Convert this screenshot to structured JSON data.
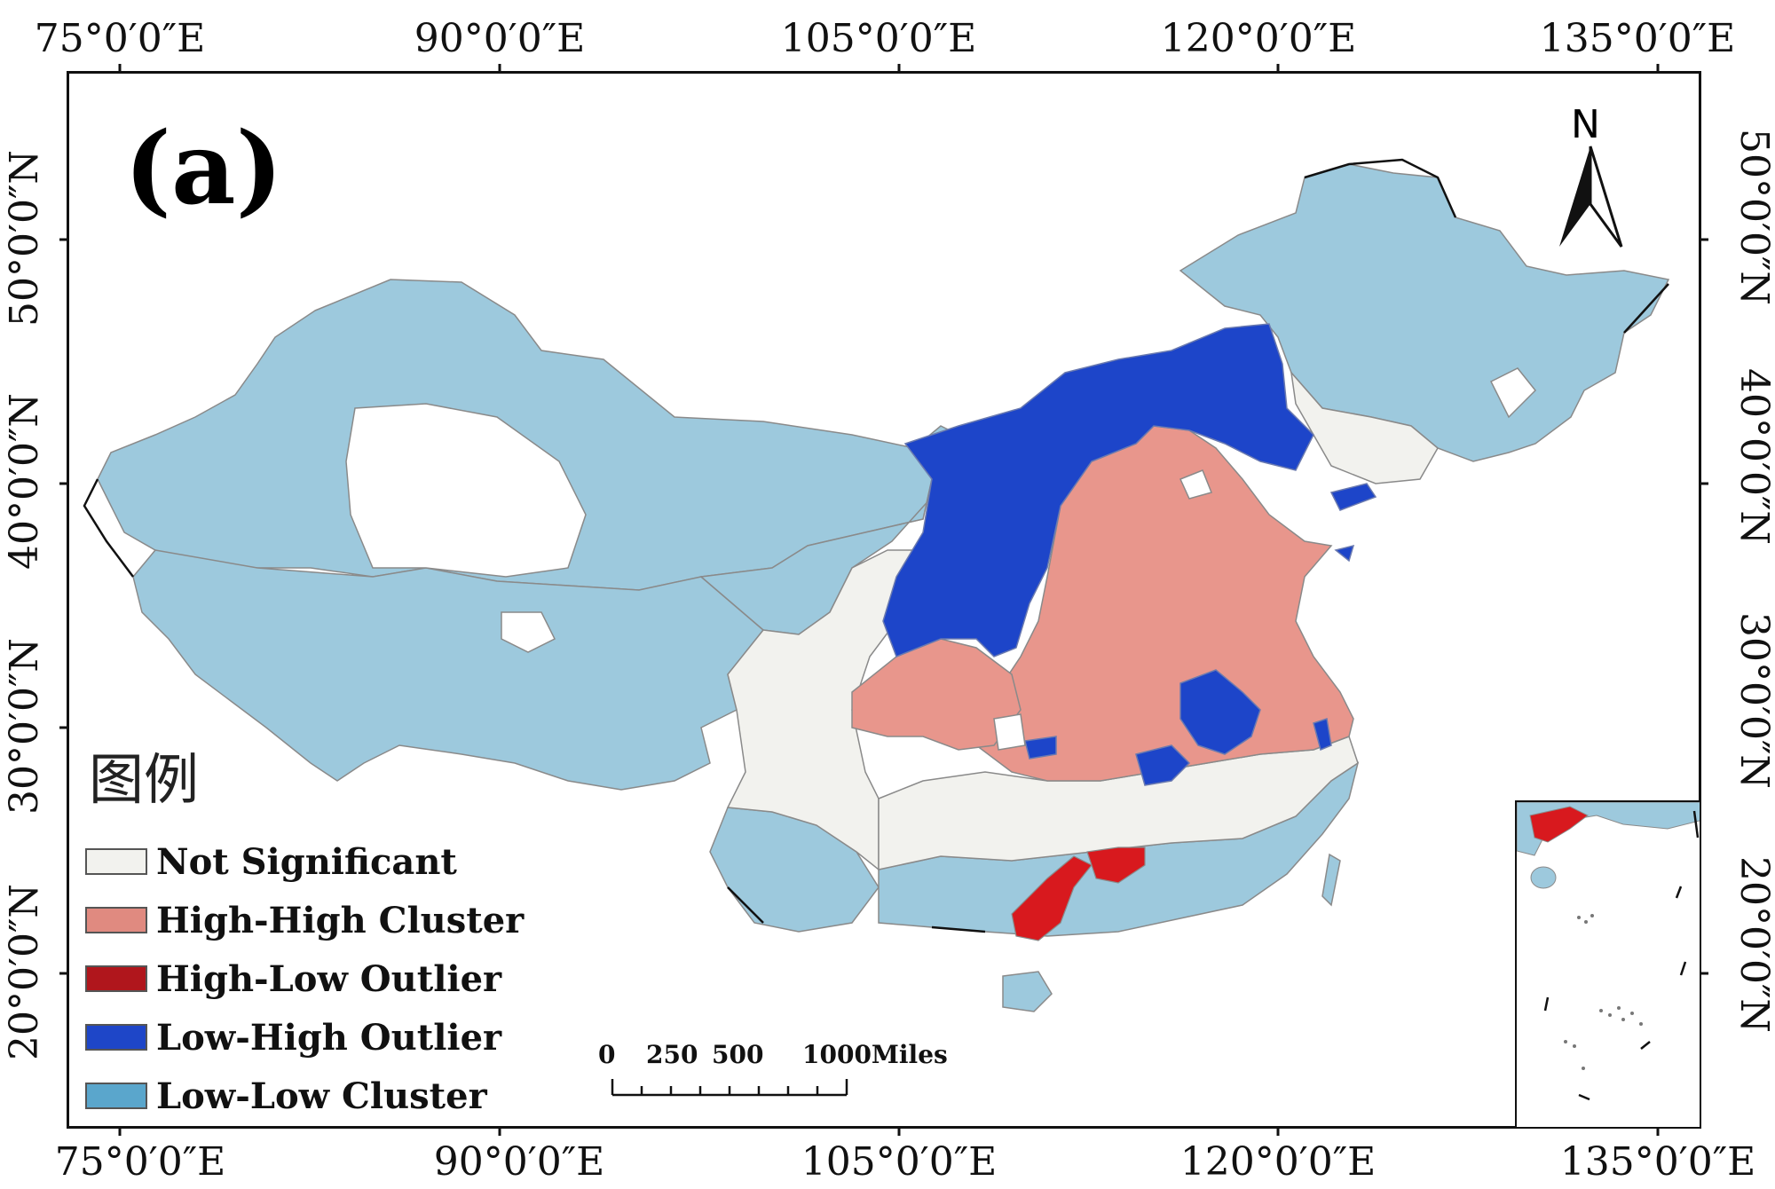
{
  "panel_label": "(a)",
  "lon_labels": [
    "75°0′0″E",
    "90°0′0″E",
    "105°0′0″E",
    "120°0′0″E",
    "135°0′0″E"
  ],
  "lat_labels": [
    "50°0′0″N",
    "40°0′0″N",
    "30°0′0″N",
    "20°0′0″N"
  ],
  "north_label": "N",
  "legend": {
    "title": "图例",
    "items": [
      {
        "label": "Not Significant",
        "color": "#f2f2ee"
      },
      {
        "label": "High-High Cluster",
        "color": "#e08a80"
      },
      {
        "label": "High-Low Outlier",
        "color": "#b0161c"
      },
      {
        "label": "Low-High Outlier",
        "color": "#1e46c8"
      },
      {
        "label": "Low-Low Cluster",
        "color": "#5aa6cc"
      }
    ]
  },
  "scale_bar": {
    "ticks": [
      "0",
      "250",
      "500",
      "1000Miles"
    ]
  },
  "colors": {
    "not_significant": "#f2f2ee",
    "high_high": "#e8968c",
    "high_low": "#d8191e",
    "low_high": "#1d45c9",
    "low_low": "#9dc9dd",
    "boundary": "#8a8a8a"
  }
}
